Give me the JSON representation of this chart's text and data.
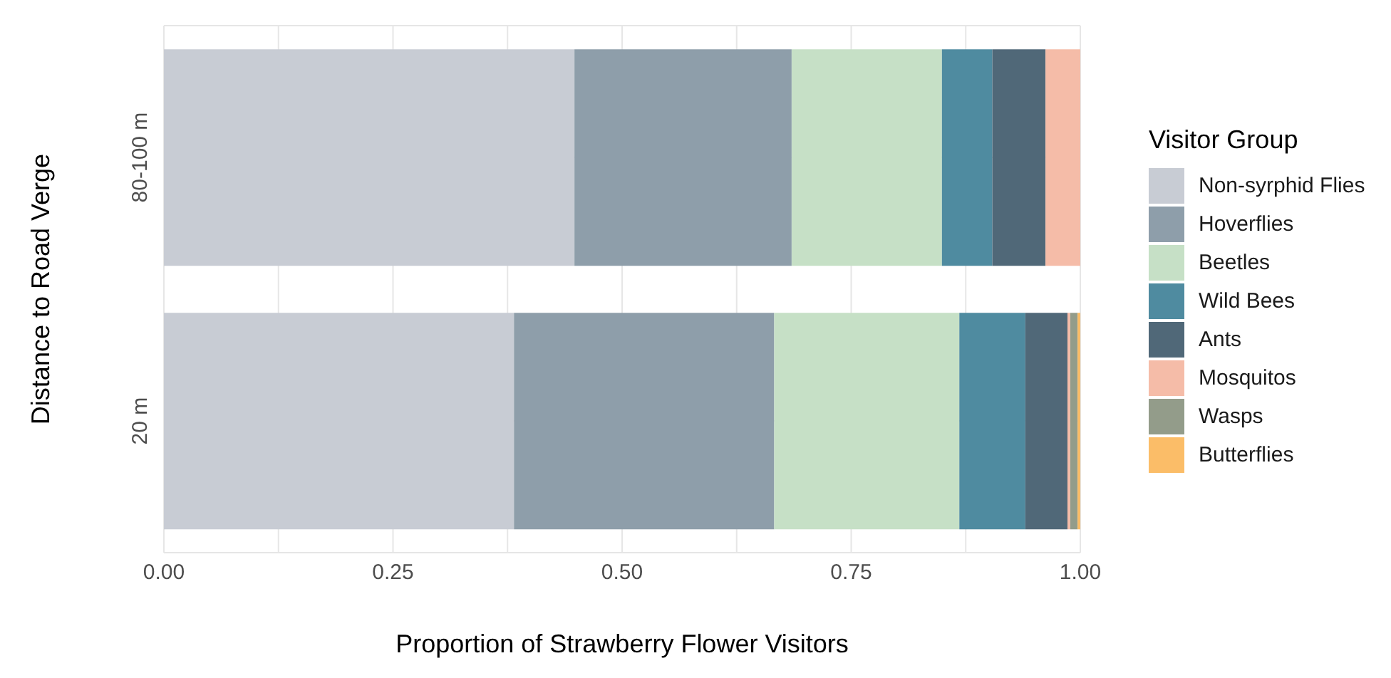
{
  "chart_data": {
    "type": "bar",
    "orientation": "horizontal",
    "stacked": true,
    "xlabel": "Proportion of Strawberry Flower Visitors",
    "ylabel": "Distance to Road Verge",
    "legend_title": "Visitor Group",
    "categories": [
      "80-100 m",
      "20 m"
    ],
    "series": [
      {
        "name": "Non-syrphid Flies",
        "color": "#c8ccd4",
        "values": [
          0.448,
          0.382
        ]
      },
      {
        "name": "Hoverflies",
        "color": "#8e9eaa",
        "values": [
          0.237,
          0.284
        ]
      },
      {
        "name": "Beetles",
        "color": "#c6e0c6",
        "values": [
          0.164,
          0.202
        ]
      },
      {
        "name": "Wild Bees",
        "color": "#4f8ba0",
        "values": [
          0.055,
          0.072
        ]
      },
      {
        "name": "Ants",
        "color": "#506878",
        "values": [
          0.058,
          0.046
        ]
      },
      {
        "name": "Mosquitos",
        "color": "#f5bca8",
        "values": [
          0.038,
          0.003
        ]
      },
      {
        "name": "Wasps",
        "color": "#939c8a",
        "values": [
          null,
          0.008
        ]
      },
      {
        "name": "Butterflies",
        "color": "#fbbd68",
        "values": [
          null,
          0.003
        ]
      }
    ],
    "xlim": [
      0,
      1
    ],
    "xticks": [
      {
        "value": 0,
        "label": "0.00"
      },
      {
        "value": 0.125,
        "label": null
      },
      {
        "value": 0.25,
        "label": "0.25"
      },
      {
        "value": 0.375,
        "label": null
      },
      {
        "value": 0.5,
        "label": "0.50"
      },
      {
        "value": 0.625,
        "label": null
      },
      {
        "value": 0.75,
        "label": "0.75"
      },
      {
        "value": 0.875,
        "label": null
      },
      {
        "value": 1,
        "label": "1.00"
      }
    ],
    "grid": true,
    "legend": "right"
  }
}
